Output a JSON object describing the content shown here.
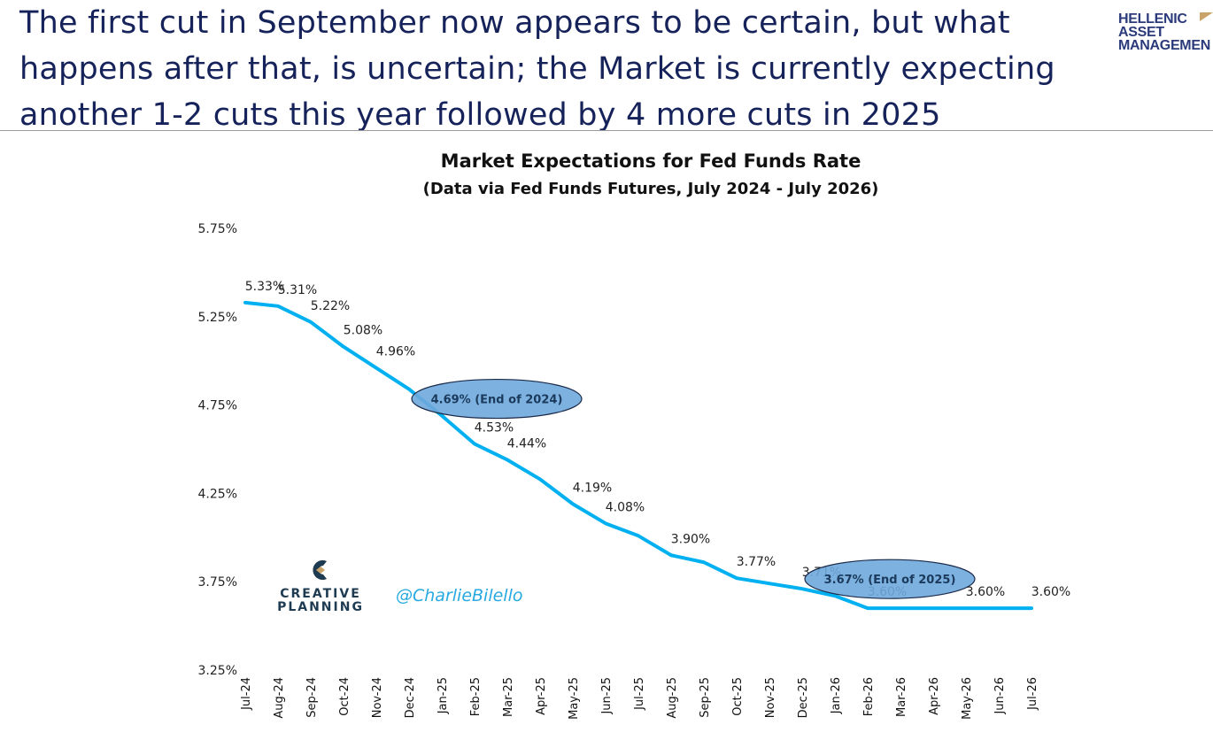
{
  "header": {
    "lines": [
      "The first cut in September now appears to be certain, but what",
      "happens after that, is uncertain; the Market is currently expecting",
      "another 1-2 cuts this year followed by 4 more cuts in 2025"
    ],
    "brand_lines": [
      "HELLENIC",
      "ASSET",
      "MANAGEMEN"
    ]
  },
  "watermark": {
    "logo_lines": [
      "CREATIVE",
      "PLANNING"
    ],
    "handle": "@CharlieBilello"
  },
  "chart_data": {
    "type": "line",
    "title": "Market Expectations for Fed Funds Rate",
    "subtitle": "(Data via Fed Funds Futures, July 2024 - July 2026)",
    "xlabel": "",
    "ylabel": "",
    "ylim": [
      3.25,
      5.75
    ],
    "yticks": [
      "5.75%",
      "5.25%",
      "4.75%",
      "4.25%",
      "3.75%",
      "3.25%"
    ],
    "ytick_values": [
      5.75,
      5.25,
      4.75,
      4.25,
      3.75,
      3.25
    ],
    "grid": false,
    "line_color": "#00b0f0",
    "categories": [
      "Jul-24",
      "Aug-24",
      "Sep-24",
      "Oct-24",
      "Nov-24",
      "Dec-24",
      "Jan-25",
      "Feb-25",
      "Mar-25",
      "Apr-25",
      "May-25",
      "Jun-25",
      "Jul-25",
      "Aug-25",
      "Sep-25",
      "Oct-25",
      "Nov-25",
      "Dec-25",
      "Jan-26",
      "Feb-26",
      "Mar-26",
      "Apr-26",
      "May-26",
      "Jun-26",
      "Jul-26"
    ],
    "values": [
      5.33,
      5.31,
      5.22,
      5.08,
      4.96,
      4.84,
      4.69,
      4.53,
      4.44,
      4.33,
      4.19,
      4.08,
      4.01,
      3.9,
      3.86,
      3.77,
      3.74,
      3.71,
      3.67,
      3.6,
      3.6,
      3.6,
      3.6,
      3.6,
      3.6
    ],
    "data_labels": [
      {
        "index": 0,
        "text": "5.33%"
      },
      {
        "index": 1,
        "text": "5.31%"
      },
      {
        "index": 2,
        "text": "5.22%"
      },
      {
        "index": 3,
        "text": "5.08%"
      },
      {
        "index": 4,
        "text": "4.96%"
      },
      {
        "index": 7,
        "text": "4.53%"
      },
      {
        "index": 8,
        "text": "4.44%"
      },
      {
        "index": 10,
        "text": "4.19%"
      },
      {
        "index": 11,
        "text": "4.08%"
      },
      {
        "index": 13,
        "text": "3.90%"
      },
      {
        "index": 15,
        "text": "3.77%"
      },
      {
        "index": 17,
        "text": "3.71%"
      },
      {
        "index": 19,
        "text": "3.60%"
      },
      {
        "index": 22,
        "text": "3.60%"
      },
      {
        "index": 24,
        "text": "3.60%"
      }
    ],
    "annotations": [
      {
        "index": 6,
        "text": "4.69% (End of 2024)",
        "fill": "#6fa8dc"
      },
      {
        "index": 18,
        "text": "3.67% (End of 2025)",
        "fill": "#6fa8dc"
      }
    ]
  }
}
